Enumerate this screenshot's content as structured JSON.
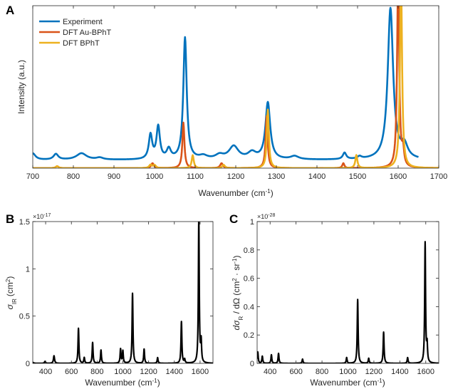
{
  "chart_data": [
    {
      "panel": "A",
      "type": "line",
      "xlabel": "Wavenumber (cm",
      "xlabel_sup": "-1",
      "xlabel_end": ")",
      "ylabel": "Intensity (a.u.)",
      "xlim": [
        700,
        1700
      ],
      "ylim": [
        0,
        1
      ],
      "xticks": [
        700,
        800,
        900,
        1000,
        1100,
        1200,
        1300,
        1400,
        1500,
        1600,
        1700
      ],
      "grid": false,
      "legend_position": "top-left",
      "series": [
        {
          "name": "Experiment",
          "color": "#0072BD",
          "baseline": 0.05,
          "peaks": [
            {
              "x": 700,
              "h": 0.04,
              "w": 8
            },
            {
              "x": 757,
              "h": 0.035,
              "w": 7
            },
            {
              "x": 820,
              "h": 0.04,
              "w": 15
            },
            {
              "x": 865,
              "h": 0.012,
              "w": 10
            },
            {
              "x": 990,
              "h": 0.15,
              "w": 5
            },
            {
              "x": 1009,
              "h": 0.2,
              "w": 5
            },
            {
              "x": 1035,
              "h": 0.06,
              "w": 6
            },
            {
              "x": 1075,
              "h": 0.75,
              "w": 5
            },
            {
              "x": 1120,
              "h": 0.02,
              "w": 12
            },
            {
              "x": 1160,
              "h": 0.025,
              "w": 12
            },
            {
              "x": 1195,
              "h": 0.08,
              "w": 14
            },
            {
              "x": 1240,
              "h": 0.04,
              "w": 12
            },
            {
              "x": 1279,
              "h": 0.35,
              "w": 7
            },
            {
              "x": 1345,
              "h": 0.02,
              "w": 12
            },
            {
              "x": 1468,
              "h": 0.04,
              "w": 5
            },
            {
              "x": 1505,
              "h": 0.015,
              "w": 6
            },
            {
              "x": 1581,
              "h": 0.93,
              "w": 8
            },
            {
              "x": 1615,
              "h": 0.08,
              "w": 10
            }
          ],
          "x_range": [
            700,
            1650
          ]
        },
        {
          "name": "DFT Au-BPhT",
          "color": "#D95319",
          "baseline": 0.0,
          "peaks": [
            {
              "x": 760,
              "h": 0.012,
              "w": 4
            },
            {
              "x": 995,
              "h": 0.03,
              "w": 4
            },
            {
              "x": 1071,
              "h": 0.28,
              "w": 3
            },
            {
              "x": 1165,
              "h": 0.03,
              "w": 4
            },
            {
              "x": 1276,
              "h": 0.32,
              "w": 3
            },
            {
              "x": 1465,
              "h": 0.03,
              "w": 3
            },
            {
              "x": 1600,
              "h": 1.2,
              "w": 3
            },
            {
              "x": 1612,
              "h": 0.1,
              "w": 3
            }
          ],
          "x_range": [
            700,
            1700
          ]
        },
        {
          "name": "DFT BPhT",
          "color": "#EDB120",
          "baseline": 0.0,
          "peaks": [
            {
              "x": 760,
              "h": 0.012,
              "w": 4
            },
            {
              "x": 990,
              "h": 0.02,
              "w": 4
            },
            {
              "x": 1000,
              "h": 0.018,
              "w": 4
            },
            {
              "x": 1094,
              "h": 0.08,
              "w": 3
            },
            {
              "x": 1170,
              "h": 0.02,
              "w": 4
            },
            {
              "x": 1279,
              "h": 0.36,
              "w": 3
            },
            {
              "x": 1497,
              "h": 0.08,
              "w": 3
            },
            {
              "x": 1607,
              "h": 1.2,
              "w": 3
            }
          ],
          "x_range": [
            700,
            1700
          ]
        }
      ]
    },
    {
      "panel": "B",
      "type": "line",
      "xlabel": "Wavenumber (cm",
      "xlabel_sup": "-1",
      "xlabel_end": ")",
      "ylabel_main": "σ",
      "ylabel_sub": "IR",
      "ylabel_unit": "(cm",
      "ylabel_unit_sup": "2",
      "ylabel_end": ")",
      "exponent": "×10",
      "exponent_power": "-17",
      "xlim": [
        300,
        1700
      ],
      "ylim": [
        0,
        1.5
      ],
      "xticks": [
        400,
        600,
        800,
        1000,
        1200,
        1400,
        1600
      ],
      "yticks": [
        0,
        0.5,
        1,
        1.5
      ],
      "ytick_labels": [
        "0",
        "0.5",
        "1",
        "1.5"
      ],
      "grid": false,
      "series": [
        {
          "color": "#000000",
          "baseline": 0.0,
          "peaks": [
            {
              "x": 300,
              "h": 0.01,
              "w": 8
            },
            {
              "x": 395,
              "h": 0.02,
              "w": 5
            },
            {
              "x": 465,
              "h": 0.08,
              "w": 5
            },
            {
              "x": 655,
              "h": 0.37,
              "w": 4
            },
            {
              "x": 700,
              "h": 0.06,
              "w": 4
            },
            {
              "x": 765,
              "h": 0.22,
              "w": 4
            },
            {
              "x": 830,
              "h": 0.14,
              "w": 4
            },
            {
              "x": 982,
              "h": 0.15,
              "w": 4
            },
            {
              "x": 1000,
              "h": 0.13,
              "w": 4
            },
            {
              "x": 1075,
              "h": 0.74,
              "w": 4
            },
            {
              "x": 1165,
              "h": 0.15,
              "w": 4
            },
            {
              "x": 1270,
              "h": 0.06,
              "w": 4
            },
            {
              "x": 1455,
              "h": 0.44,
              "w": 4
            },
            {
              "x": 1480,
              "h": 0.04,
              "w": 4
            },
            {
              "x": 1590,
              "h": 1.53,
              "w": 4
            },
            {
              "x": 1608,
              "h": 0.22,
              "w": 4
            }
          ],
          "x_range": [
            300,
            1700
          ]
        }
      ]
    },
    {
      "panel": "C",
      "type": "line",
      "xlabel": "Wavenumber (cm",
      "xlabel_sup": "-1",
      "xlabel_end": ")",
      "ylabel_text": "dσ",
      "ylabel_sub": "R",
      "ylabel_mid": " / dΩ (cm",
      "ylabel_sup1": "2",
      "ylabel_dot": " · sr",
      "ylabel_sup2": "-1",
      "ylabel_end": ")",
      "exponent": "×10",
      "exponent_power": "-28",
      "xlim": [
        300,
        1700
      ],
      "ylim": [
        0,
        1
      ],
      "xticks": [
        400,
        600,
        800,
        1000,
        1200,
        1400,
        1600
      ],
      "yticks": [
        0,
        0.2,
        0.4,
        0.6,
        0.8,
        1
      ],
      "ytick_labels": [
        "0",
        "0.2",
        "0.4",
        "0.6",
        "0.8",
        "1"
      ],
      "grid": false,
      "series": [
        {
          "color": "#000000",
          "baseline": 0.0,
          "peaks": [
            {
              "x": 305,
              "h": 0.08,
              "w": 4
            },
            {
              "x": 340,
              "h": 0.05,
              "w": 4
            },
            {
              "x": 410,
              "h": 0.06,
              "w": 4
            },
            {
              "x": 465,
              "h": 0.07,
              "w": 4
            },
            {
              "x": 650,
              "h": 0.03,
              "w": 4
            },
            {
              "x": 990,
              "h": 0.04,
              "w": 4
            },
            {
              "x": 1075,
              "h": 0.45,
              "w": 4
            },
            {
              "x": 1160,
              "h": 0.035,
              "w": 4
            },
            {
              "x": 1275,
              "h": 0.22,
              "w": 4
            },
            {
              "x": 1460,
              "h": 0.04,
              "w": 4
            },
            {
              "x": 1595,
              "h": 0.85,
              "w": 4
            },
            {
              "x": 1610,
              "h": 0.12,
              "w": 4
            }
          ],
          "x_range": [
            300,
            1700
          ]
        }
      ]
    }
  ]
}
